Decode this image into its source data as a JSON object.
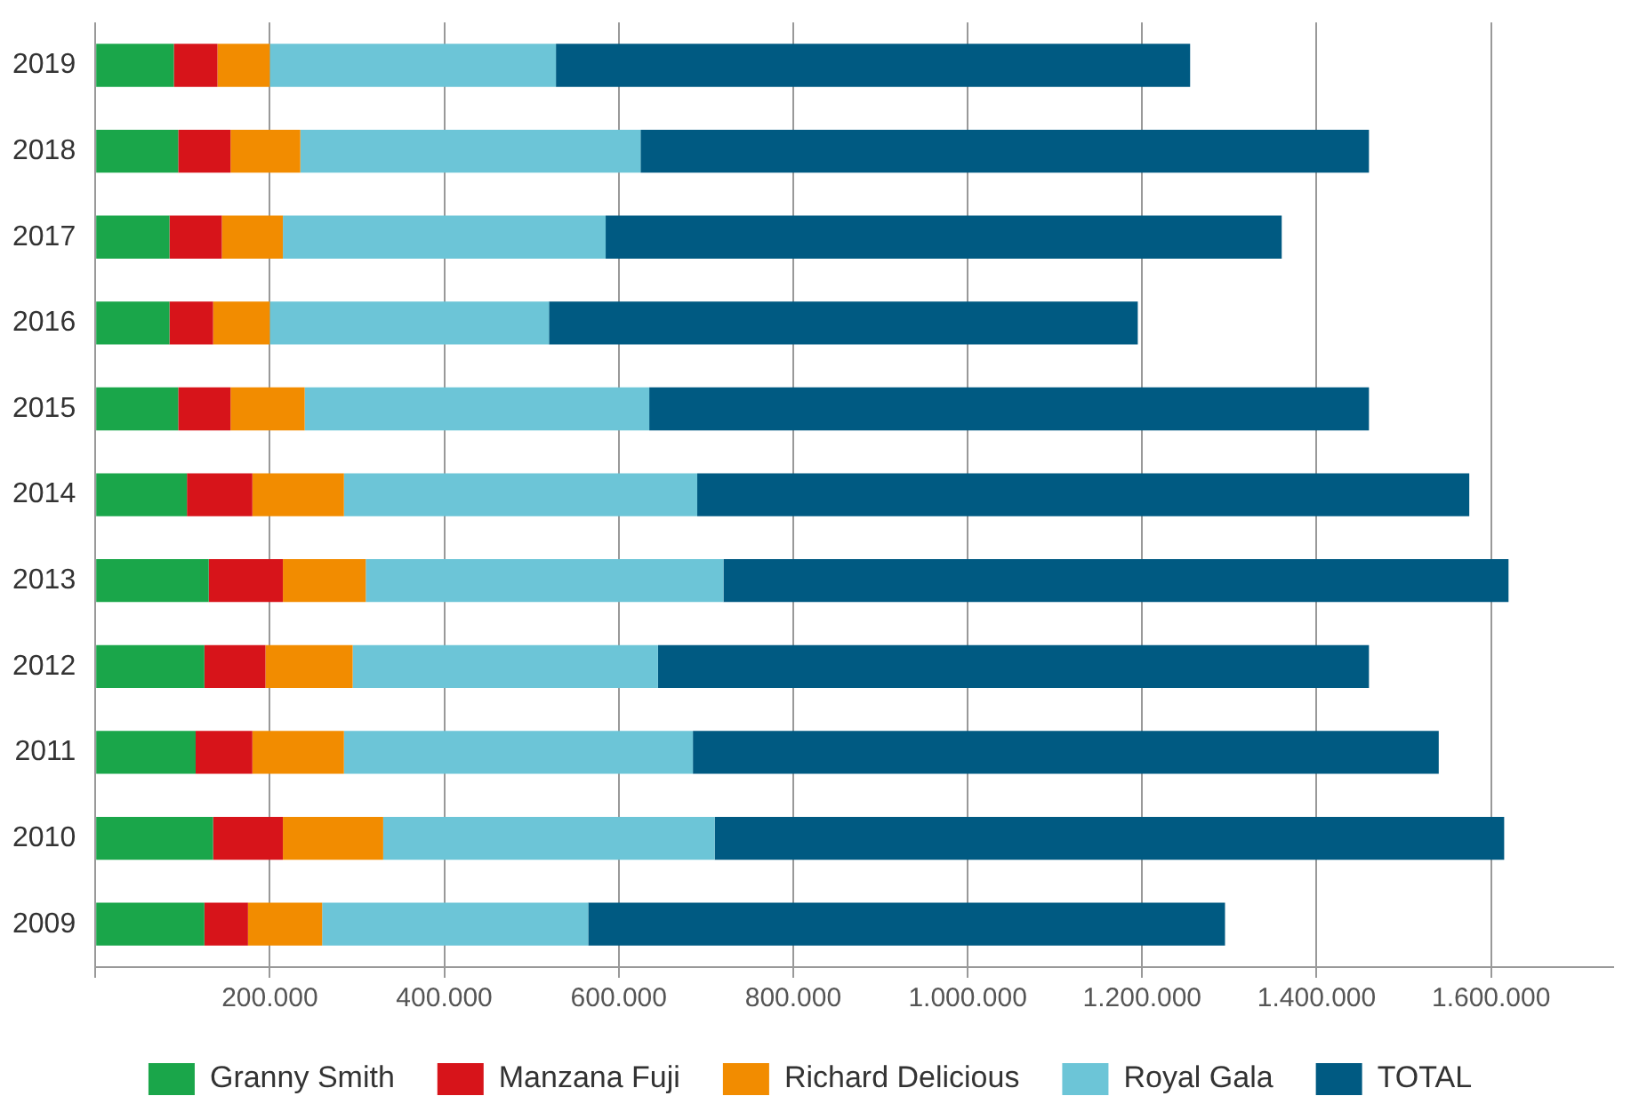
{
  "chart_data": {
    "type": "bar",
    "orientation": "horizontal",
    "stacked": true,
    "categories": [
      "2019",
      "2018",
      "2017",
      "2016",
      "2015",
      "2014",
      "2013",
      "2012",
      "2011",
      "2010",
      "2009"
    ],
    "series": [
      {
        "name": "Granny Smith",
        "color": "#1aa64a",
        "values": [
          90000,
          95000,
          85000,
          85000,
          95000,
          105000,
          130000,
          125000,
          115000,
          135000,
          125000
        ]
      },
      {
        "name": "Manzana Fuji",
        "color": "#d7141a",
        "values": [
          50000,
          60000,
          60000,
          50000,
          60000,
          75000,
          85000,
          70000,
          65000,
          80000,
          50000
        ]
      },
      {
        "name": "Richard Delicious",
        "color": "#f28c00",
        "values": [
          60000,
          80000,
          70000,
          65000,
          85000,
          105000,
          95000,
          100000,
          105000,
          115000,
          85000
        ]
      },
      {
        "name": "Royal Gala",
        "color": "#6cc5d7",
        "values": [
          328000,
          390000,
          370000,
          320000,
          395000,
          405000,
          410000,
          350000,
          400000,
          380000,
          305000
        ]
      },
      {
        "name": "TOTAL",
        "color": "#005a82",
        "values": [
          727000,
          835000,
          775000,
          675000,
          825000,
          885000,
          900000,
          815000,
          855000,
          905000,
          730000
        ]
      }
    ],
    "xlim": [
      0,
      1740000
    ],
    "xticks": [
      {
        "value": 0,
        "label": null
      },
      {
        "value": 200000,
        "label": "200.000"
      },
      {
        "value": 400000,
        "label": "400.000"
      },
      {
        "value": 600000,
        "label": "600.000"
      },
      {
        "value": 800000,
        "label": "800.000"
      },
      {
        "value": 1000000,
        "label": "1.000.000"
      },
      {
        "value": 1200000,
        "label": "1.200.000"
      },
      {
        "value": 1400000,
        "label": "1.400.000"
      },
      {
        "value": 1600000,
        "label": "1.600.000"
      }
    ],
    "grid": "x",
    "legend": "bottom"
  }
}
